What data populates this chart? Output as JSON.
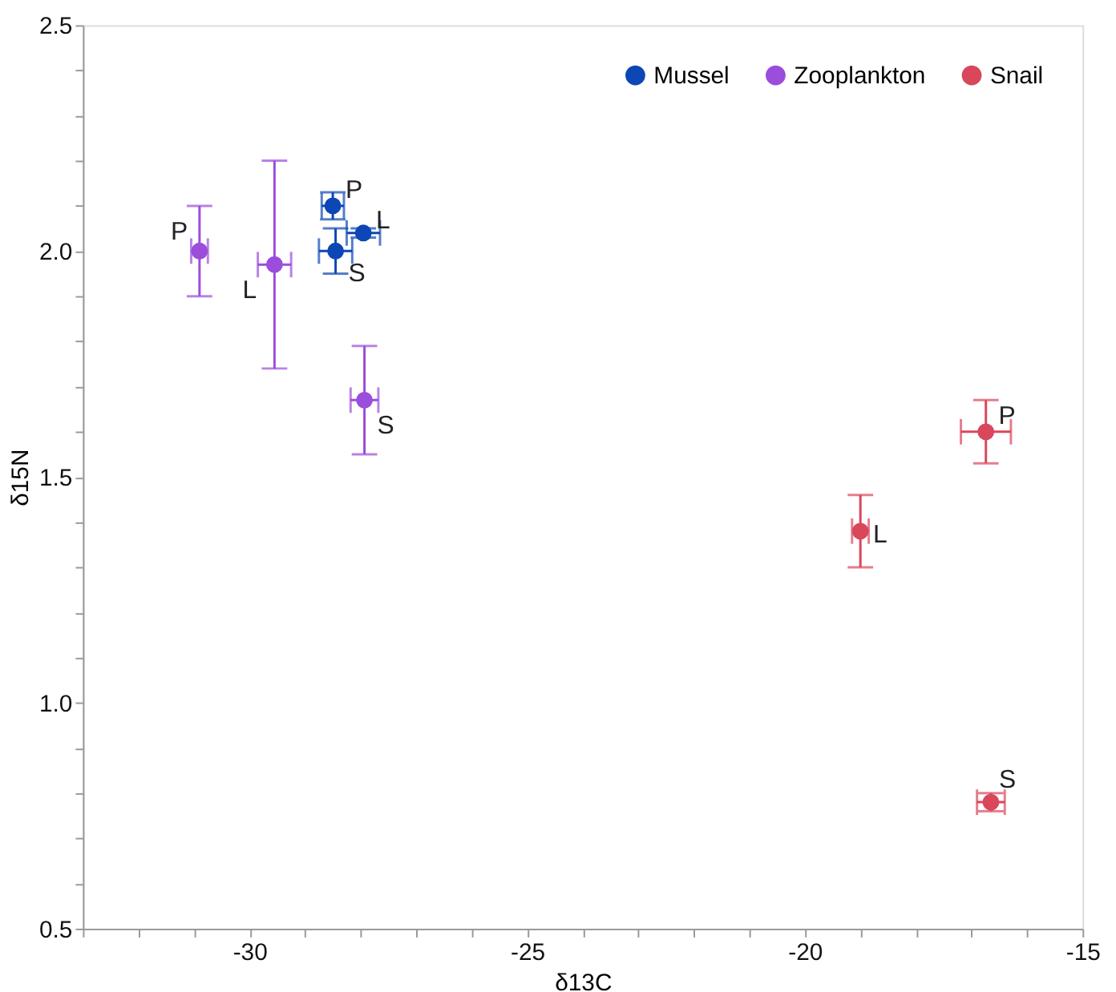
{
  "chart_data": {
    "type": "scatter",
    "xlabel": "δ13C",
    "ylabel": "δ15N",
    "xlim": [
      -33,
      -15
    ],
    "xticks": [
      {
        "value": -33,
        "label": null
      },
      {
        "value": -32,
        "label": null
      },
      {
        "value": -31,
        "label": null
      },
      -30,
      {
        "value": -29,
        "label": null
      },
      {
        "value": -28,
        "label": null
      },
      {
        "value": -27,
        "label": null
      },
      {
        "value": -26,
        "label": null
      },
      -25,
      {
        "value": -24,
        "label": null
      },
      {
        "value": -23,
        "label": null
      },
      {
        "value": -22,
        "label": null
      },
      {
        "value": -21,
        "label": null
      },
      -20,
      {
        "value": -19,
        "label": null
      },
      {
        "value": -18,
        "label": null
      },
      {
        "value": -17,
        "label": null
      },
      {
        "value": -16,
        "label": null
      },
      -15
    ],
    "ylim": [
      0.5,
      2.5
    ],
    "yticks": [
      {
        "value": 0.5,
        "label": "0.5"
      },
      {
        "value": 0.6,
        "label": null
      },
      {
        "value": 0.7,
        "label": null
      },
      {
        "value": 0.8,
        "label": null
      },
      {
        "value": 0.9,
        "label": null
      },
      {
        "value": 1.0,
        "label": "1.0"
      },
      {
        "value": 1.1,
        "label": null
      },
      {
        "value": 1.2,
        "label": null
      },
      {
        "value": 1.3,
        "label": null
      },
      {
        "value": 1.4,
        "label": null
      },
      {
        "value": 1.5,
        "label": "1.5"
      },
      {
        "value": 1.6,
        "label": null
      },
      {
        "value": 1.7,
        "label": null
      },
      {
        "value": 1.8,
        "label": null
      },
      {
        "value": 1.9,
        "label": null
      },
      {
        "value": 2.0,
        "label": "2.0"
      },
      {
        "value": 2.1,
        "label": null
      },
      {
        "value": 2.2,
        "label": null
      },
      {
        "value": 2.3,
        "label": null
      },
      {
        "value": 2.4,
        "label": null
      },
      {
        "value": 2.5,
        "label": "2.5"
      }
    ],
    "grid": false,
    "legend": "top right",
    "marker": "circle",
    "series": [
      {
        "name": "Mussel",
        "color": "#0d47b5",
        "x": [
          -28.5,
          -27.95,
          -28.45
        ],
        "values": [
          2.1,
          2.04,
          2.0
        ],
        "errors": [
          0.03,
          0.01,
          0.05
        ],
        "xerrors": [
          0.2,
          0.3,
          0.3
        ]
      },
      {
        "name": "Zooplankton",
        "color": "#9b4ddb",
        "x": [
          -30.9,
          -29.55,
          -27.93
        ],
        "values": [
          2.0,
          1.97,
          1.67
        ],
        "errors": [
          0.1,
          [
            1.74,
            2.2
          ],
          [
            1.55,
            1.79
          ]
        ],
        "xerrors": [
          0.15,
          0.3,
          0.25
        ]
      },
      {
        "name": "Snail",
        "color": "#d9475a",
        "x": [
          -16.74,
          -19.0,
          -16.65
        ],
        "values": [
          1.6,
          1.38,
          0.78
        ],
        "errors": [
          [
            1.53,
            1.67
          ],
          [
            1.3,
            1.46
          ],
          0.02
        ],
        "xerrors": [
          0.45,
          0.15,
          0.25
        ]
      }
    ],
    "annotations": [
      {
        "text": "P",
        "x": -28.5,
        "y": 2.1
      },
      {
        "text": "L",
        "x": -27.95,
        "y": 2.04
      },
      {
        "text": "S",
        "x": -28.45,
        "y": 2.0
      },
      {
        "text": "P",
        "x": -30.9,
        "y": 2.0
      },
      {
        "text": "L",
        "x": -29.55,
        "y": 1.97
      },
      {
        "text": "S",
        "x": -27.93,
        "y": 1.67
      },
      {
        "text": "P",
        "x": -16.74,
        "y": 1.6
      },
      {
        "text": "L",
        "x": -19.0,
        "y": 1.38
      },
      {
        "text": "S",
        "x": -16.65,
        "y": 0.78
      }
    ]
  }
}
